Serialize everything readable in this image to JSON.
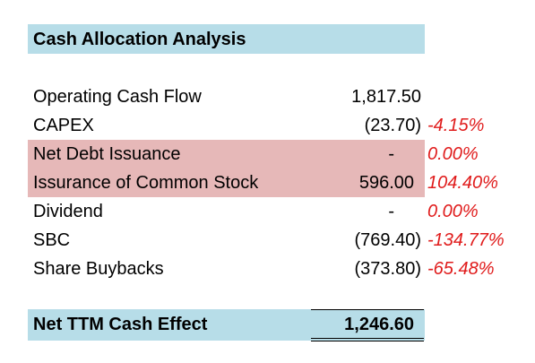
{
  "title": "Cash Allocation Analysis",
  "rows": [
    {
      "label": "Operating Cash Flow",
      "value": "1,817.50",
      "pct": "",
      "highlight": false
    },
    {
      "label": "CAPEX",
      "value": "(23.70)",
      "pct": "-4.15%",
      "highlight": false
    },
    {
      "label": "Net Debt Issuance",
      "value": "-",
      "pct": "0.00%",
      "highlight": true
    },
    {
      "label": "Issurance of Common Stock",
      "value": "596.00",
      "pct": "104.40%",
      "highlight": true
    },
    {
      "label": "Dividend",
      "value": "-",
      "pct": "0.00%",
      "highlight": false
    },
    {
      "label": "SBC",
      "value": "(769.40)",
      "pct": "-134.77%",
      "highlight": false
    },
    {
      "label": "Share Buybacks",
      "value": "(373.80)",
      "pct": "-65.48%",
      "highlight": false
    }
  ],
  "total": {
    "label": "Net TTM Cash Effect",
    "value": "1,246.60"
  },
  "colors": {
    "header_fill": "#b7dde8",
    "highlight_fill": "#e6b8b8",
    "percent_text": "#e01b1b"
  }
}
